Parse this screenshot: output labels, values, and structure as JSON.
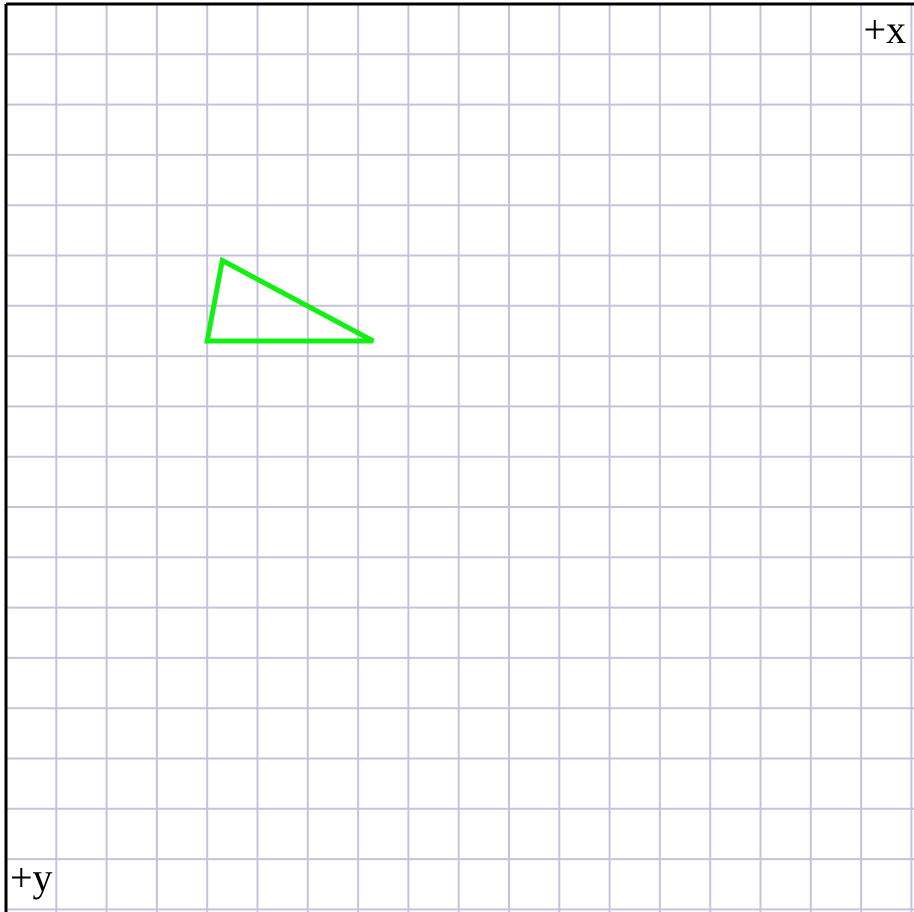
{
  "diagram": {
    "grid": {
      "columns": 18,
      "rows": 18,
      "line_color": "#c4c3dd",
      "paper_color": "#ffffff"
    },
    "axes": {
      "x_label": "+x",
      "y_label": "+y",
      "color": "#000000"
    },
    "triangle": {
      "color": "#13ef13",
      "vertices_grid": [
        [
          4.3,
          5.1
        ],
        [
          7.3,
          6.7
        ],
        [
          4.0,
          6.7
        ]
      ]
    }
  }
}
